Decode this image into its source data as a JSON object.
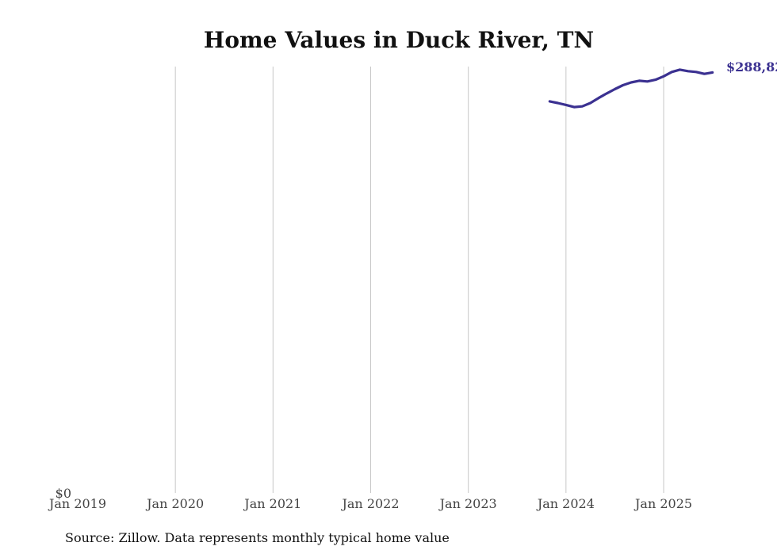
{
  "chart_data": {
    "type": "line",
    "title": "Home Values in Duck River, TN",
    "source": "Source: Zillow. Data represents monthly typical home value",
    "xlabel": "",
    "ylabel": "",
    "x_ticks": [
      "Jan 2019",
      "Jan 2020",
      "Jan 2021",
      "Jan 2022",
      "Jan 2023",
      "Jan 2024",
      "Jan 2025"
    ],
    "y_ticks": [
      "$0"
    ],
    "ylim": [
      0,
      300000
    ],
    "x_range": [
      "2019-01",
      "2025-10"
    ],
    "grid": "vertical",
    "line_color": "#3b3191",
    "end_label": "$288,82",
    "series": [
      {
        "x": [
          "2023-11",
          "2023-12",
          "2024-01",
          "2024-02",
          "2024-03",
          "2024-04",
          "2024-05",
          "2024-06",
          "2024-07",
          "2024-08",
          "2024-09",
          "2024-10",
          "2024-11",
          "2024-12",
          "2025-01",
          "2025-02",
          "2025-03",
          "2025-04",
          "2025-05",
          "2025-06",
          "2025-07"
        ],
        "values": [
          273500,
          272300,
          271000,
          269500,
          270000,
          272300,
          275800,
          279000,
          282000,
          284800,
          286700,
          287900,
          287400,
          288600,
          291000,
          294000,
          295600,
          294600,
          294000,
          292700,
          293700
        ]
      }
    ]
  }
}
